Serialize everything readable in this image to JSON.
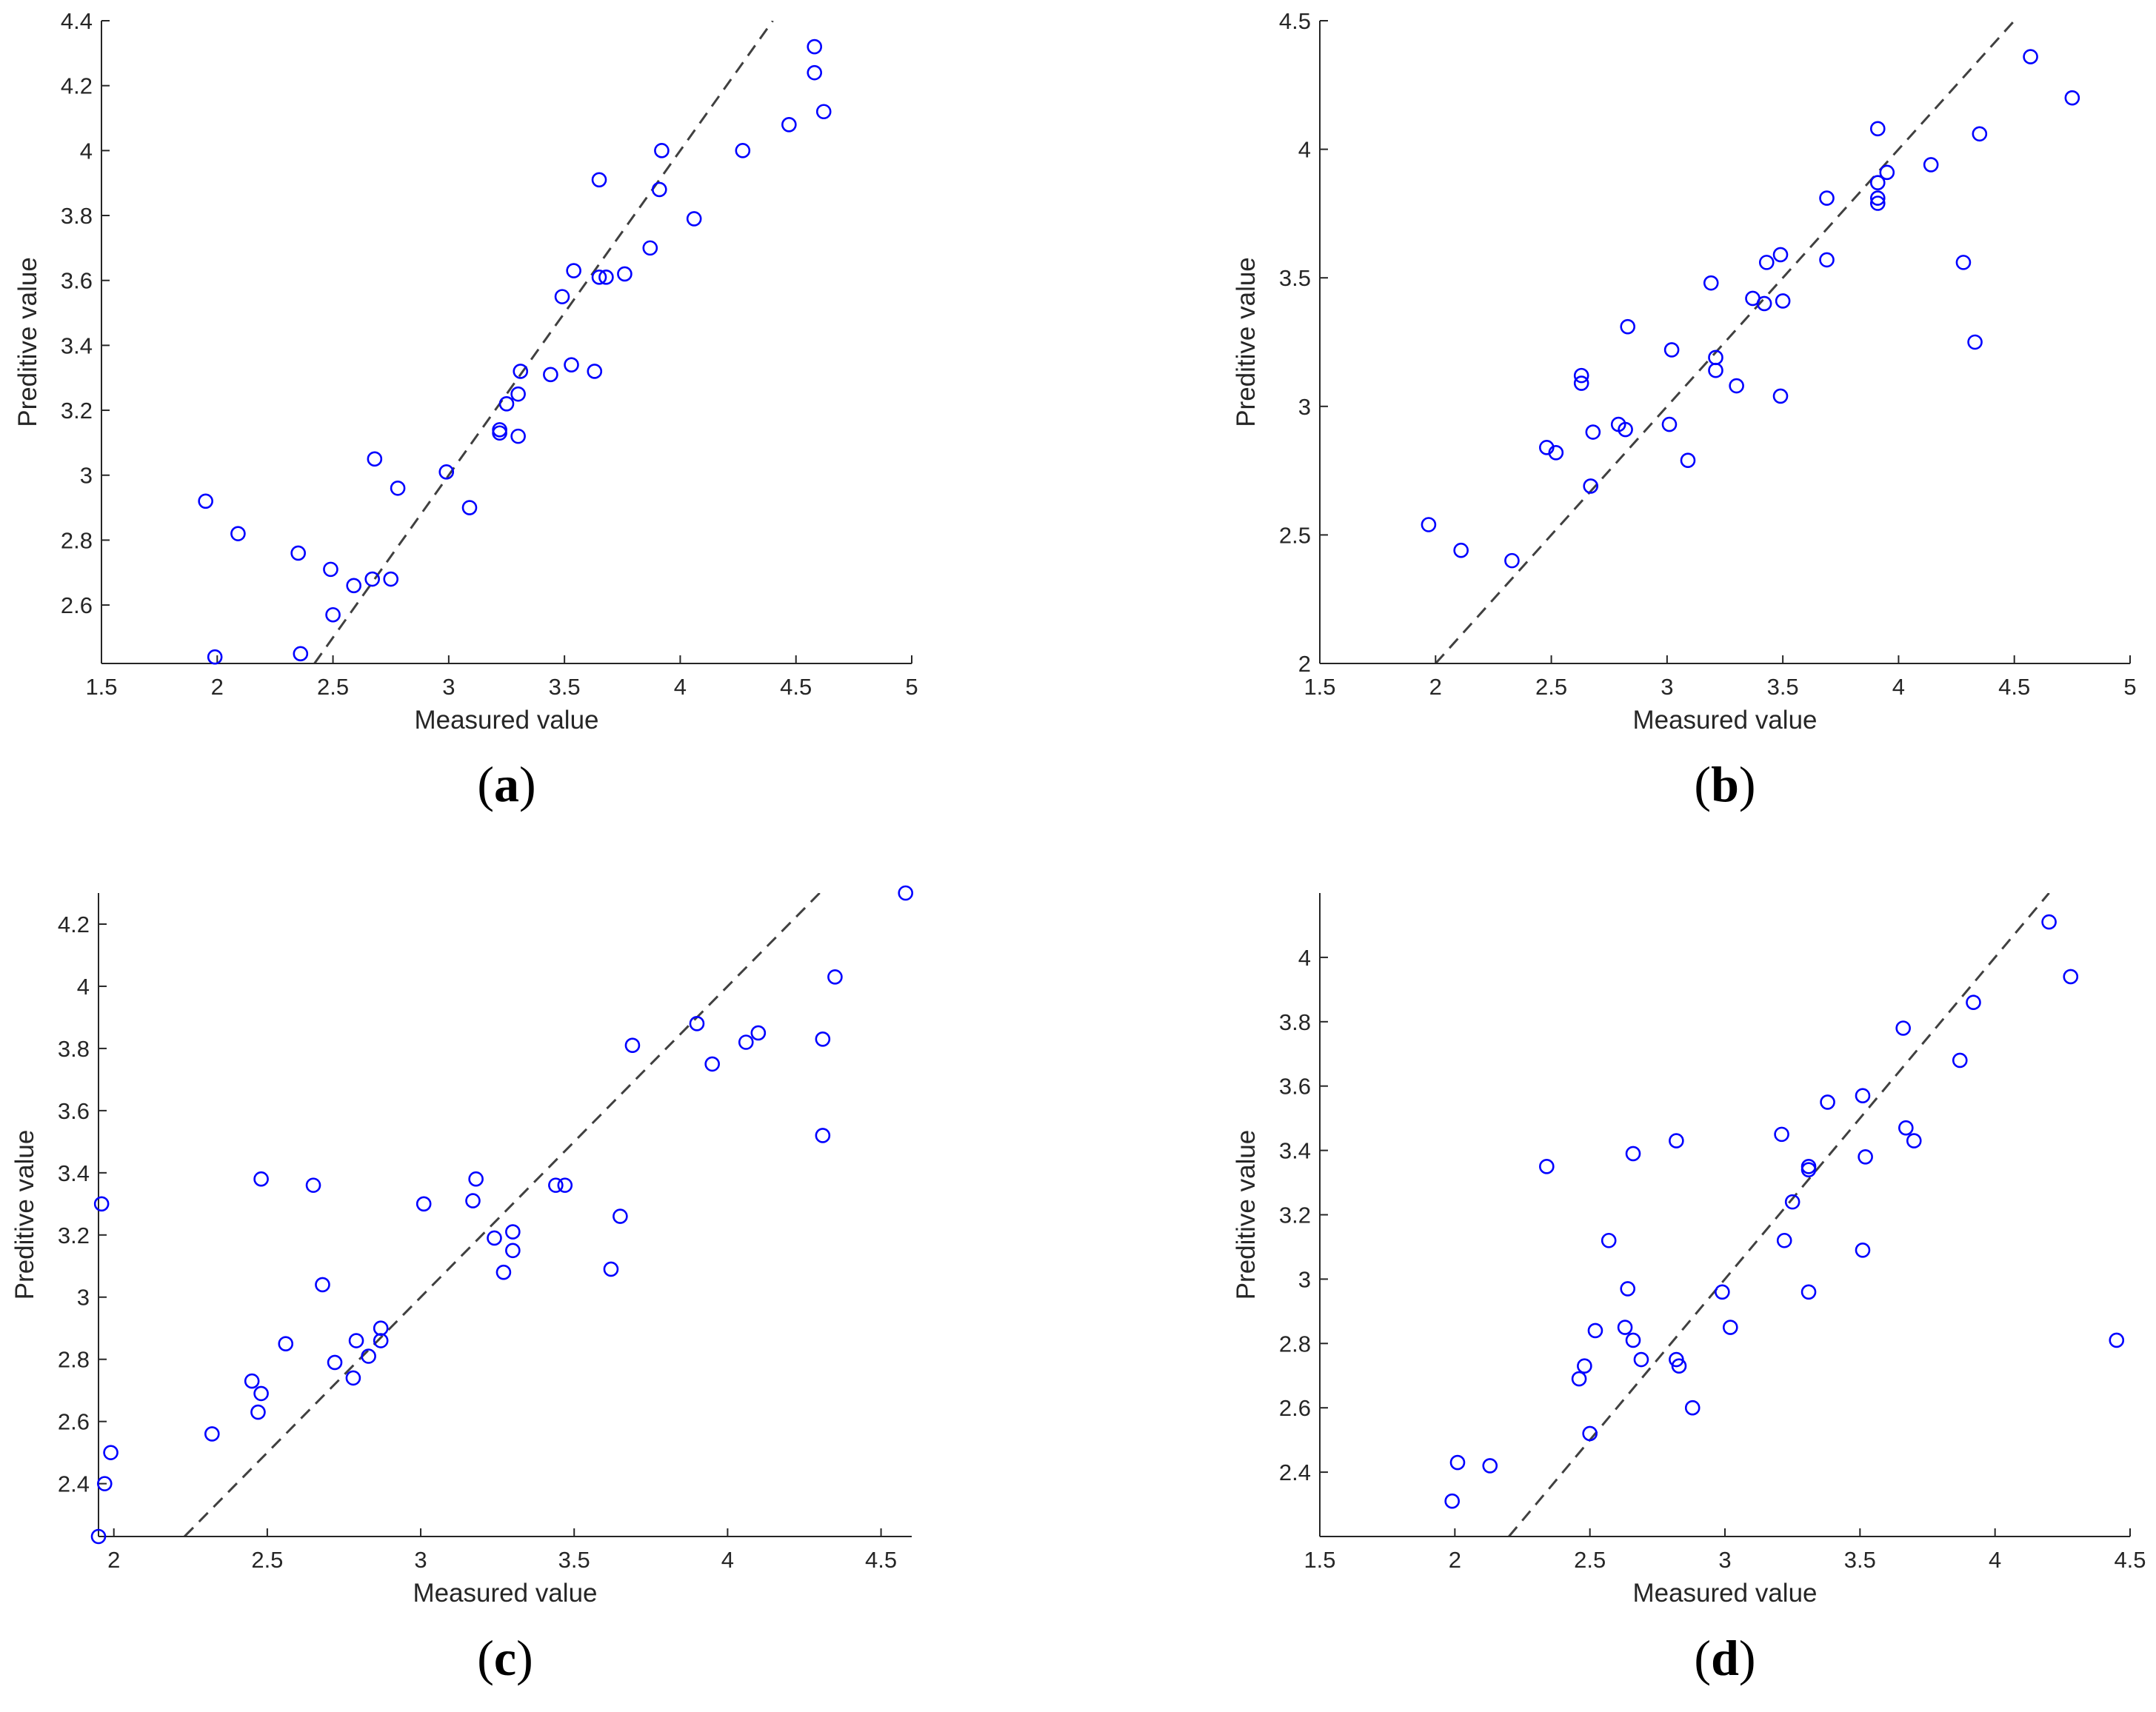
{
  "colors": {
    "marker": "#0000ff",
    "diagonal": "#404040",
    "axis": "#262626",
    "background": "#ffffff"
  },
  "chart_data": [
    {
      "id": "a",
      "type": "scatter",
      "panel_label": "a",
      "xlabel": "Measured value",
      "ylabel": "Preditive value",
      "xlim": [
        1.5,
        5
      ],
      "ylim": [
        2.42,
        4.4
      ],
      "xticks": [
        1.5,
        2,
        2.5,
        3,
        3.5,
        4,
        4.5,
        5
      ],
      "yticks": [
        2.6,
        2.8,
        3,
        3.2,
        3.4,
        3.6,
        3.8,
        4,
        4.2,
        4.4
      ],
      "xtick_labels": [
        "1.5",
        "2",
        "2.5",
        "3",
        "3.5",
        "4",
        "4.5",
        "5"
      ],
      "ytick_labels": [
        "2.6",
        "2.8",
        "3",
        "3.2",
        "3.4",
        "3.6",
        "3.8",
        "4",
        "4.2",
        "4.4"
      ],
      "reference_line": "y = x",
      "points": [
        [
          1.95,
          2.92
        ],
        [
          2.09,
          2.82
        ],
        [
          1.99,
          2.44
        ],
        [
          2.35,
          2.76
        ],
        [
          2.36,
          2.45
        ],
        [
          2.49,
          2.71
        ],
        [
          2.5,
          2.57
        ],
        [
          2.59,
          2.66
        ],
        [
          2.67,
          2.68
        ],
        [
          2.68,
          3.05
        ],
        [
          2.75,
          2.68
        ],
        [
          2.78,
          2.96
        ],
        [
          2.99,
          3.01
        ],
        [
          3.09,
          2.9
        ],
        [
          3.22,
          3.14
        ],
        [
          3.22,
          3.13
        ],
        [
          3.25,
          3.22
        ],
        [
          3.3,
          3.25
        ],
        [
          3.31,
          3.32
        ],
        [
          3.3,
          3.12
        ],
        [
          3.44,
          3.31
        ],
        [
          3.49,
          3.55
        ],
        [
          3.53,
          3.34
        ],
        [
          3.54,
          3.63
        ],
        [
          3.63,
          3.32
        ],
        [
          3.65,
          3.61
        ],
        [
          3.68,
          3.61
        ],
        [
          3.76,
          3.62
        ],
        [
          3.65,
          3.91
        ],
        [
          3.87,
          3.7
        ],
        [
          3.91,
          3.88
        ],
        [
          3.92,
          4.0
        ],
        [
          4.06,
          3.79
        ],
        [
          4.27,
          4.0
        ],
        [
          4.47,
          4.08
        ],
        [
          4.58,
          4.24
        ],
        [
          4.58,
          4.32
        ],
        [
          4.62,
          4.12
        ]
      ]
    },
    {
      "id": "b",
      "type": "scatter",
      "panel_label": "b",
      "xlabel": "Measured value",
      "ylabel": "Preditive value",
      "xlim": [
        1.5,
        5
      ],
      "ylim": [
        2,
        4.5
      ],
      "xticks": [
        1.5,
        2,
        2.5,
        3,
        3.5,
        4,
        4.5,
        5
      ],
      "yticks": [
        2,
        2.5,
        3,
        3.5,
        4,
        4.5
      ],
      "xtick_labels": [
        "1.5",
        "2",
        "2.5",
        "3",
        "3.5",
        "4",
        "4.5",
        "5"
      ],
      "ytick_labels": [
        "2",
        "2.5",
        "3",
        "3.5",
        "4",
        "4.5"
      ],
      "reference_line": "y = x",
      "points": [
        [
          1.97,
          2.54
        ],
        [
          2.11,
          2.44
        ],
        [
          2.33,
          2.4
        ],
        [
          2.48,
          2.84
        ],
        [
          2.52,
          2.82
        ],
        [
          2.63,
          3.12
        ],
        [
          2.63,
          3.09
        ],
        [
          2.67,
          2.69
        ],
        [
          2.68,
          2.9
        ],
        [
          2.79,
          2.93
        ],
        [
          2.82,
          2.91
        ],
        [
          2.83,
          3.31
        ],
        [
          3.01,
          2.93
        ],
        [
          3.02,
          3.22
        ],
        [
          3.09,
          2.79
        ],
        [
          3.19,
          3.48
        ],
        [
          3.21,
          3.19
        ],
        [
          3.21,
          3.14
        ],
        [
          3.3,
          3.08
        ],
        [
          3.37,
          3.42
        ],
        [
          3.42,
          3.4
        ],
        [
          3.43,
          3.56
        ],
        [
          3.49,
          3.59
        ],
        [
          3.5,
          3.41
        ],
        [
          3.49,
          3.04
        ],
        [
          3.69,
          3.57
        ],
        [
          3.69,
          3.81
        ],
        [
          3.91,
          3.87
        ],
        [
          3.91,
          3.81
        ],
        [
          3.91,
          3.79
        ],
        [
          3.91,
          4.08
        ],
        [
          3.95,
          3.91
        ],
        [
          4.14,
          3.94
        ],
        [
          4.28,
          3.56
        ],
        [
          4.33,
          3.25
        ],
        [
          4.35,
          4.06
        ],
        [
          4.57,
          4.36
        ],
        [
          4.75,
          4.2
        ]
      ]
    },
    {
      "id": "c",
      "type": "scatter",
      "panel_label": "c",
      "xlabel": "Measured value",
      "ylabel": "Preditive value",
      "xlim": [
        1.95,
        4.6
      ],
      "ylim": [
        2.23,
        4.3
      ],
      "xticks": [
        2,
        2.5,
        3,
        3.5,
        4,
        4.5
      ],
      "yticks": [
        2.4,
        2.6,
        2.8,
        3,
        3.2,
        3.4,
        3.6,
        3.8,
        4,
        4.2
      ],
      "xtick_labels": [
        "2",
        "2.5",
        "3",
        "3.5",
        "4",
        "4.5"
      ],
      "ytick_labels": [
        "2.4",
        "2.6",
        "2.8",
        "3",
        "3.2",
        "3.4",
        "3.6",
        "3.8",
        "4",
        "4.2"
      ],
      "reference_line": "y = x",
      "points": [
        [
          1.95,
          2.23
        ],
        [
          1.96,
          3.3
        ],
        [
          1.97,
          2.4
        ],
        [
          1.99,
          2.5
        ],
        [
          2.32,
          2.56
        ],
        [
          2.45,
          2.73
        ],
        [
          2.47,
          2.63
        ],
        [
          2.48,
          2.69
        ],
        [
          2.48,
          3.38
        ],
        [
          2.56,
          2.85
        ],
        [
          2.65,
          3.36
        ],
        [
          2.68,
          3.04
        ],
        [
          2.72,
          2.79
        ],
        [
          2.78,
          2.74
        ],
        [
          2.79,
          2.86
        ],
        [
          2.83,
          2.81
        ],
        [
          2.87,
          2.86
        ],
        [
          2.87,
          2.9
        ],
        [
          3.01,
          3.3
        ],
        [
          3.17,
          3.31
        ],
        [
          3.18,
          3.38
        ],
        [
          3.24,
          3.19
        ],
        [
          3.27,
          3.08
        ],
        [
          3.3,
          3.21
        ],
        [
          3.3,
          3.15
        ],
        [
          3.44,
          3.36
        ],
        [
          3.47,
          3.36
        ],
        [
          3.62,
          3.09
        ],
        [
          3.65,
          3.26
        ],
        [
          3.69,
          3.81
        ],
        [
          3.9,
          3.88
        ],
        [
          3.95,
          3.75
        ],
        [
          4.06,
          3.82
        ],
        [
          4.1,
          3.85
        ],
        [
          4.31,
          3.83
        ],
        [
          4.31,
          3.52
        ],
        [
          4.35,
          4.03
        ],
        [
          4.58,
          4.3
        ]
      ]
    },
    {
      "id": "d",
      "type": "scatter",
      "panel_label": "d",
      "xlabel": "Measured value",
      "ylabel": "Preditive value",
      "xlim": [
        1.5,
        4.5
      ],
      "ylim": [
        2.2,
        4.2
      ],
      "xticks": [
        1.5,
        2,
        2.5,
        3,
        3.5,
        4,
        4.5
      ],
      "yticks": [
        2.4,
        2.6,
        2.8,
        3,
        3.2,
        3.4,
        3.6,
        3.8,
        4
      ],
      "xtick_labels": [
        "1.5",
        "2",
        "2.5",
        "3",
        "3.5",
        "4",
        "4.5"
      ],
      "ytick_labels": [
        "2.4",
        "2.6",
        "2.8",
        "3",
        "3.2",
        "3.4",
        "3.6",
        "3.8",
        "4"
      ],
      "reference_line": "y = x",
      "points": [
        [
          1.99,
          2.31
        ],
        [
          2.01,
          2.43
        ],
        [
          2.13,
          2.42
        ],
        [
          2.34,
          3.35
        ],
        [
          2.46,
          2.69
        ],
        [
          2.48,
          2.73
        ],
        [
          2.5,
          2.52
        ],
        [
          2.52,
          2.84
        ],
        [
          2.57,
          3.12
        ],
        [
          2.63,
          2.85
        ],
        [
          2.64,
          2.97
        ],
        [
          2.66,
          2.81
        ],
        [
          2.66,
          3.39
        ],
        [
          2.69,
          2.75
        ],
        [
          2.82,
          2.75
        ],
        [
          2.82,
          3.43
        ],
        [
          2.83,
          2.73
        ],
        [
          2.88,
          2.6
        ],
        [
          2.99,
          2.96
        ],
        [
          3.02,
          2.85
        ],
        [
          3.21,
          3.45
        ],
        [
          3.22,
          3.12
        ],
        [
          3.25,
          3.24
        ],
        [
          3.31,
          3.35
        ],
        [
          3.31,
          2.96
        ],
        [
          3.31,
          3.34
        ],
        [
          3.38,
          3.55
        ],
        [
          3.51,
          3.09
        ],
        [
          3.51,
          3.57
        ],
        [
          3.52,
          3.38
        ],
        [
          3.66,
          3.78
        ],
        [
          3.67,
          3.47
        ],
        [
          3.7,
          3.43
        ],
        [
          3.87,
          3.68
        ],
        [
          3.92,
          3.86
        ],
        [
          4.2,
          4.11
        ],
        [
          4.28,
          3.94
        ],
        [
          4.45,
          2.81
        ]
      ]
    }
  ]
}
